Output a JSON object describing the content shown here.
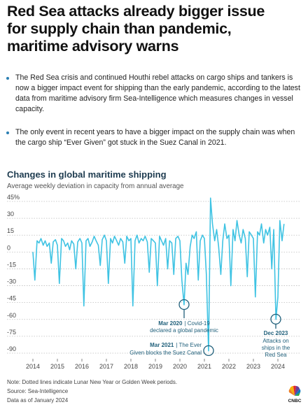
{
  "header": {
    "title": [
      "Red Sea attacks already bigger issue",
      "for supply chain than pandemic,",
      "maritime advisory warns"
    ]
  },
  "bullets": [
    "The Red Sea crisis and continued Houthi rebel attacks on cargo ships and tankers is now a bigger impact event for shipping than the early pandemic, according to the latest data from maritime advisory firm Sea-Intelligence which measures changes in vessel capacity.",
    "The only event in recent years to have a bigger impact on the supply chain was when the cargo ship “Ever Given” got stuck in the Suez Canal in 2021."
  ],
  "chart_data": {
    "type": "line",
    "title": "Changes in global maritime shipping",
    "subtitle": "Average weekly deviation in capacity from annual average",
    "color": "#3fc3e3",
    "grid": true,
    "x": [
      2014,
      2014.08,
      2014.17,
      2014.25,
      2014.33,
      2014.42,
      2014.5,
      2014.58,
      2014.67,
      2014.75,
      2014.83,
      2014.92,
      2015,
      2015.08,
      2015.17,
      2015.25,
      2015.33,
      2015.42,
      2015.5,
      2015.58,
      2015.67,
      2015.75,
      2015.83,
      2015.92,
      2016,
      2016.08,
      2016.17,
      2016.25,
      2016.33,
      2016.42,
      2016.5,
      2016.58,
      2016.67,
      2016.75,
      2016.83,
      2016.92,
      2017,
      2017.08,
      2017.17,
      2017.25,
      2017.33,
      2017.42,
      2017.5,
      2017.58,
      2017.67,
      2017.75,
      2017.83,
      2017.92,
      2018,
      2018.08,
      2018.17,
      2018.25,
      2018.33,
      2018.42,
      2018.5,
      2018.58,
      2018.67,
      2018.75,
      2018.83,
      2018.92,
      2019,
      2019.08,
      2019.17,
      2019.25,
      2019.33,
      2019.42,
      2019.5,
      2019.58,
      2019.67,
      2019.75,
      2019.83,
      2019.92,
      2020,
      2020.08,
      2020.17,
      2020.25,
      2020.33,
      2020.42,
      2020.5,
      2020.58,
      2020.67,
      2020.75,
      2020.83,
      2020.92,
      2021,
      2021.08,
      2021.17,
      2021.25,
      2021.33,
      2021.42,
      2021.5,
      2021.58,
      2021.67,
      2021.75,
      2021.83,
      2021.92,
      2022,
      2022.08,
      2022.17,
      2022.25,
      2022.33,
      2022.42,
      2022.5,
      2022.58,
      2022.67,
      2022.75,
      2022.83,
      2022.92,
      2023,
      2023.08,
      2023.17,
      2023.25,
      2023.33,
      2023.42,
      2023.5,
      2023.58,
      2023.67,
      2023.75,
      2023.83,
      2023.92,
      2024,
      2024.08,
      2024.17,
      2024.25
    ],
    "values": [
      0,
      -25,
      10,
      8,
      12,
      6,
      10,
      5,
      8,
      -10,
      9,
      11,
      6,
      -28,
      12,
      10,
      5,
      8,
      2,
      10,
      7,
      -15,
      9,
      12,
      8,
      -48,
      10,
      12,
      5,
      9,
      14,
      10,
      6,
      -12,
      11,
      15,
      10,
      -28,
      12,
      8,
      14,
      10,
      6,
      12,
      9,
      -10,
      14,
      10,
      12,
      -48,
      10,
      15,
      8,
      12,
      10,
      14,
      9,
      -18,
      12,
      10,
      8,
      -30,
      14,
      10,
      6,
      12,
      -15,
      10,
      8,
      -20,
      12,
      14,
      10,
      -25,
      -47,
      -10,
      -20,
      5,
      15,
      12,
      18,
      -25,
      10,
      15,
      12,
      -20,
      -88,
      48,
      25,
      10,
      20,
      5,
      -20,
      10,
      25,
      12,
      15,
      -30,
      20,
      10,
      28,
      15,
      8,
      20,
      12,
      -22,
      18,
      15,
      12,
      -40,
      18,
      15,
      25,
      8,
      20,
      15,
      22,
      -15,
      20,
      -60,
      -40,
      28,
      10,
      25
    ],
    "xlim": [
      2013.7,
      2024.5
    ],
    "xticks": [
      2014,
      2015,
      2016,
      2017,
      2018,
      2019,
      2020,
      2021,
      2022,
      2023,
      2024
    ],
    "ylim": [
      -95,
      50
    ],
    "yticks": [
      {
        "value": 45,
        "label": "45%"
      },
      30,
      15,
      0,
      -15,
      -30,
      -45,
      -60,
      -75,
      -90
    ],
    "annotations": [
      {
        "date": "Mar 2020",
        "text": [
          "| Covid-19",
          "declared a global pandemic"
        ]
      },
      {
        "date": "Mar 2021",
        "text": [
          "| The Ever",
          "Given blocks the Suez Canal"
        ]
      },
      {
        "date": "Dec 2023",
        "text": [
          "Attacks on",
          "ships in the",
          "Red Sea"
        ]
      }
    ]
  },
  "footer": {
    "note": "Note: Dotted lines indicate Lunar New Year or Golden Week periods.",
    "source": "Source: Sea-Intelligence",
    "data_as_of": "Data as of January 2024",
    "logo": "CNBC"
  }
}
